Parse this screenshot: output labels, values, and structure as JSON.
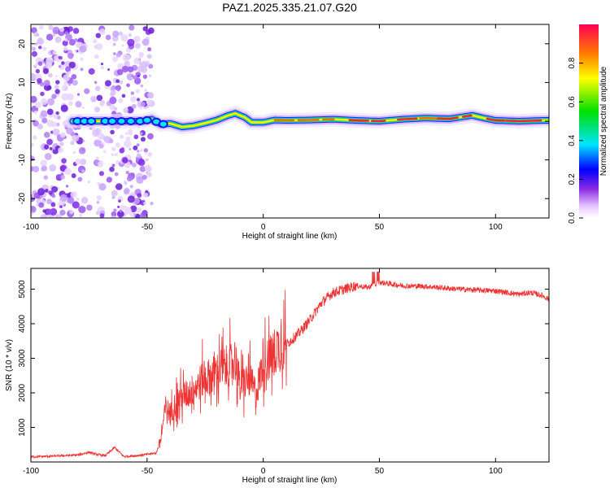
{
  "title": "PAZ1.2025.335.21.07.G20",
  "chart_data": [
    {
      "type": "heatmap",
      "name": "spectrogram",
      "xlabel": "Height of straight line (km)",
      "ylabel": "Frequency (Hz)",
      "xlim": [
        -100,
        123
      ],
      "ylim": [
        -25,
        25
      ],
      "xticks": [
        -100,
        -50,
        0,
        50,
        100
      ],
      "yticks": [
        -20,
        -10,
        0,
        10,
        20
      ],
      "colorbar": {
        "label": "Normalized spectral amplitude",
        "range": [
          0,
          1
        ],
        "ticks": [
          0.0,
          0.2,
          0.4,
          0.6,
          0.8
        ],
        "tick_labels": [
          "0.0",
          "0.2",
          "0.4",
          "0.6",
          "0.8"
        ]
      },
      "ridge": {
        "description_values_hz": "frequency of dominant tone vs height",
        "x": [
          -80,
          -70,
          -60,
          -52,
          -48,
          -44,
          -40,
          -35,
          -30,
          -25,
          -20,
          -15,
          -12,
          -8,
          -5,
          0,
          5,
          10,
          20,
          30,
          40,
          50,
          60,
          70,
          80,
          90,
          95,
          100,
          110,
          120
        ],
        "y": [
          0,
          0,
          0,
          0,
          0.5,
          -0.8,
          -0.6,
          -1.5,
          -1.2,
          -0.5,
          0.3,
          1.5,
          2.0,
          1.0,
          -0.3,
          -0.3,
          0.3,
          0.2,
          0.3,
          0.5,
          0.2,
          0.0,
          0.5,
          0.8,
          0.6,
          1.5,
          0.8,
          0.2,
          0.0,
          0.2
        ],
        "noise_region_xlim": [
          -100,
          -48
        ]
      }
    },
    {
      "type": "line",
      "name": "snr",
      "xlabel": "Height of straight line (km)",
      "ylabel": "SNR (10 * v/v)",
      "xlim": [
        -100,
        123
      ],
      "ylim": [
        0,
        5600
      ],
      "xticks": [
        -100,
        -50,
        0,
        50,
        100
      ],
      "yticks": [
        1000,
        2000,
        3000,
        4000,
        5000
      ],
      "color": "#ee3333",
      "series": {
        "x": [
          -100,
          -90,
          -80,
          -75,
          -72,
          -68,
          -64,
          -60,
          -55,
          -50,
          -46,
          -44,
          -42,
          -40,
          -37,
          -34,
          -30,
          -26,
          -22,
          -18,
          -14,
          -12,
          -10,
          -6,
          -3,
          0,
          3,
          6,
          10,
          15,
          20,
          25,
          30,
          35,
          40,
          45,
          50,
          55,
          60,
          70,
          80,
          90,
          100,
          110,
          115,
          120,
          123
        ],
        "y": [
          150,
          170,
          200,
          280,
          220,
          180,
          420,
          160,
          180,
          220,
          260,
          700,
          1600,
          1400,
          1800,
          1900,
          2100,
          2400,
          2500,
          2700,
          2800,
          3000,
          2200,
          2400,
          2000,
          2900,
          3000,
          3300,
          3400,
          3700,
          4100,
          4600,
          4900,
          5000,
          5100,
          5050,
          5200,
          5150,
          5100,
          5080,
          5020,
          4980,
          4950,
          4850,
          4900,
          4820,
          4700
        ]
      }
    }
  ]
}
